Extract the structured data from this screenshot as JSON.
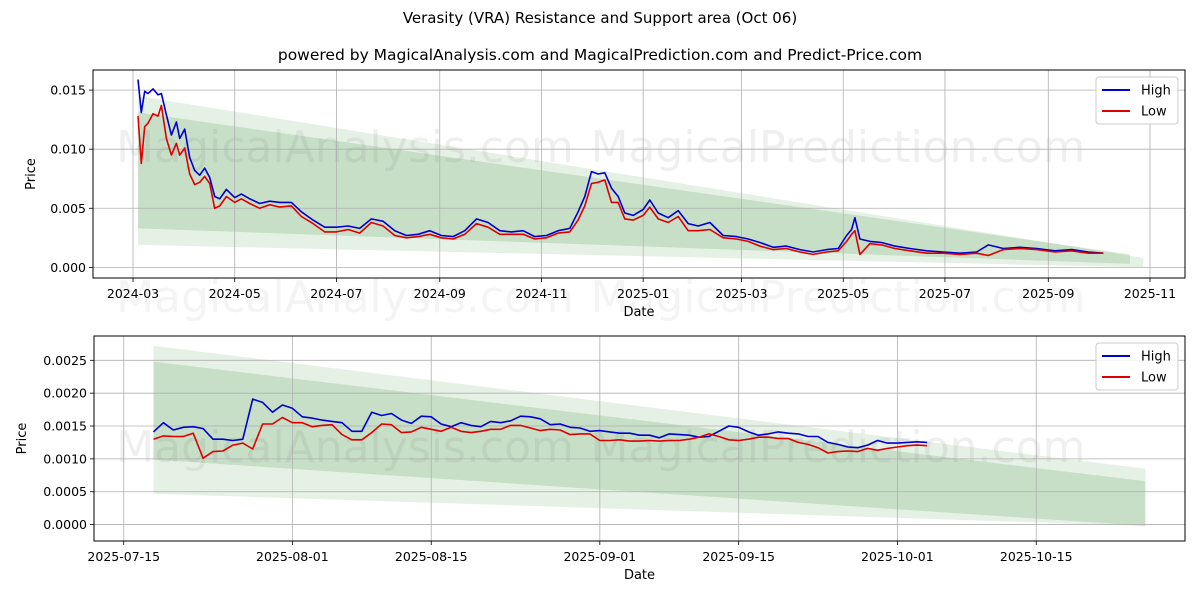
{
  "figure": {
    "title": "Verasity (VRA) Resistance and Support area (Oct 06)",
    "subtitle": "powered by MagicalAnalysis.com and MagicalPrediction.com and Predict-Price.com",
    "watermarks": [
      "MagicalAnalysis.com",
      "MagicalPrediction.com"
    ]
  },
  "colors": {
    "high": "#0000cc",
    "low": "#dd0000",
    "band_dark": "#a5d4a5",
    "band_light": "#cfe8cf",
    "grid": "#b0b0b0"
  },
  "chart_data": [
    {
      "type": "line",
      "title": "",
      "xlabel": "Date",
      "ylabel": "Price",
      "grid": true,
      "legend": {
        "position": "top-right",
        "entries": [
          "High",
          "Low"
        ]
      },
      "x_ticks": [
        "2024-03",
        "2024-05",
        "2024-07",
        "2024-09",
        "2024-11",
        "2025-01",
        "2025-03",
        "2025-05",
        "2025-07",
        "2025-09",
        "2025-11"
      ],
      "y_ticks": [
        "0.000",
        "0.005",
        "0.010",
        "0.015"
      ],
      "xlim": [
        "2024-02-06",
        "2025-11-22"
      ],
      "ylim": [
        -0.0009,
        0.0167
      ],
      "bands": [
        {
          "name": "outer-band",
          "x": [
            "2024-03-04",
            "2025-10-28"
          ],
          "upper": [
            0.0145,
            0.0008
          ],
          "lower": [
            0.0019,
            0.0
          ]
        },
        {
          "name": "inner-band",
          "x": [
            "2024-03-04",
            "2025-10-20"
          ],
          "upper": [
            0.0131,
            0.0011
          ],
          "lower": [
            0.0033,
            0.0003
          ]
        }
      ],
      "series": [
        {
          "name": "High",
          "x": [
            "2024-03-04",
            "2024-03-06",
            "2024-03-08",
            "2024-03-10",
            "2024-03-13",
            "2024-03-16",
            "2024-03-18",
            "2024-03-21",
            "2024-03-24",
            "2024-03-27",
            "2024-03-29",
            "2024-04-01",
            "2024-04-04",
            "2024-04-07",
            "2024-04-10",
            "2024-04-13",
            "2024-04-16",
            "2024-04-19",
            "2024-04-22",
            "2024-04-26",
            "2024-05-01",
            "2024-05-05",
            "2024-05-10",
            "2024-05-16",
            "2024-05-22",
            "2024-05-28",
            "2024-06-04",
            "2024-06-10",
            "2024-06-17",
            "2024-06-24",
            "2024-07-01",
            "2024-07-08",
            "2024-07-15",
            "2024-07-22",
            "2024-07-29",
            "2024-08-05",
            "2024-08-12",
            "2024-08-19",
            "2024-08-26",
            "2024-09-02",
            "2024-09-09",
            "2024-09-16",
            "2024-09-23",
            "2024-09-30",
            "2024-10-07",
            "2024-10-14",
            "2024-10-21",
            "2024-10-28",
            "2024-11-04",
            "2024-11-11",
            "2024-11-18",
            "2024-11-23",
            "2024-11-27",
            "2024-12-01",
            "2024-12-05",
            "2024-12-09",
            "2024-12-13",
            "2024-12-17",
            "2024-12-21",
            "2024-12-26",
            "2025-01-01",
            "2025-01-05",
            "2025-01-10",
            "2025-01-16",
            "2025-01-22",
            "2025-01-28",
            "2025-02-03",
            "2025-02-10",
            "2025-02-18",
            "2025-02-26",
            "2025-03-05",
            "2025-03-12",
            "2025-03-20",
            "2025-03-28",
            "2025-04-05",
            "2025-04-13",
            "2025-04-21",
            "2025-04-28",
            "2025-05-03",
            "2025-05-06",
            "2025-05-08",
            "2025-05-11",
            "2025-05-17",
            "2025-05-24",
            "2025-06-01",
            "2025-06-10",
            "2025-06-20",
            "2025-06-30",
            "2025-07-10",
            "2025-07-20",
            "2025-07-27",
            "2025-08-05",
            "2025-08-15",
            "2025-08-25",
            "2025-09-05",
            "2025-09-15",
            "2025-09-25",
            "2025-10-04"
          ],
          "values": [
            0.0159,
            0.0131,
            0.0149,
            0.0147,
            0.0151,
            0.0146,
            0.0147,
            0.0129,
            0.0112,
            0.0123,
            0.0109,
            0.0117,
            0.0093,
            0.0082,
            0.0078,
            0.0084,
            0.0076,
            0.006,
            0.0058,
            0.0066,
            0.0059,
            0.0062,
            0.0058,
            0.0054,
            0.0056,
            0.0055,
            0.0055,
            0.0047,
            0.004,
            0.0034,
            0.0034,
            0.0035,
            0.0033,
            0.0041,
            0.0039,
            0.0031,
            0.0027,
            0.0028,
            0.0031,
            0.0027,
            0.0026,
            0.0031,
            0.0041,
            0.0038,
            0.0031,
            0.003,
            0.0031,
            0.0026,
            0.0027,
            0.0031,
            0.0033,
            0.0047,
            0.006,
            0.0081,
            0.0079,
            0.008,
            0.0067,
            0.006,
            0.0046,
            0.0044,
            0.0049,
            0.0057,
            0.0046,
            0.0042,
            0.0048,
            0.0037,
            0.0035,
            0.0038,
            0.0027,
            0.0026,
            0.0024,
            0.0021,
            0.0017,
            0.0018,
            0.0015,
            0.0013,
            0.0015,
            0.0016,
            0.0027,
            0.0032,
            0.0042,
            0.0024,
            0.0022,
            0.0021,
            0.0018,
            0.0016,
            0.0014,
            0.0013,
            0.0012,
            0.0013,
            0.0019,
            0.0016,
            0.0017,
            0.0016,
            0.0014,
            0.0015,
            0.0013,
            0.0012
          ]
        },
        {
          "name": "Low",
          "x": [
            "2024-03-04",
            "2024-03-06",
            "2024-03-08",
            "2024-03-10",
            "2024-03-13",
            "2024-03-16",
            "2024-03-18",
            "2024-03-21",
            "2024-03-24",
            "2024-03-27",
            "2024-03-29",
            "2024-04-01",
            "2024-04-04",
            "2024-04-07",
            "2024-04-10",
            "2024-04-13",
            "2024-04-16",
            "2024-04-19",
            "2024-04-22",
            "2024-04-26",
            "2024-05-01",
            "2024-05-05",
            "2024-05-10",
            "2024-05-16",
            "2024-05-22",
            "2024-05-28",
            "2024-06-04",
            "2024-06-10",
            "2024-06-17",
            "2024-06-24",
            "2024-07-01",
            "2024-07-08",
            "2024-07-15",
            "2024-07-22",
            "2024-07-29",
            "2024-08-05",
            "2024-08-12",
            "2024-08-19",
            "2024-08-26",
            "2024-09-02",
            "2024-09-09",
            "2024-09-16",
            "2024-09-23",
            "2024-09-30",
            "2024-10-07",
            "2024-10-14",
            "2024-10-21",
            "2024-10-28",
            "2024-11-04",
            "2024-11-11",
            "2024-11-18",
            "2024-11-23",
            "2024-11-27",
            "2024-12-01",
            "2024-12-05",
            "2024-12-09",
            "2024-12-13",
            "2024-12-17",
            "2024-12-21",
            "2024-12-26",
            "2025-01-01",
            "2025-01-05",
            "2025-01-10",
            "2025-01-16",
            "2025-01-22",
            "2025-01-28",
            "2025-02-03",
            "2025-02-10",
            "2025-02-18",
            "2025-02-26",
            "2025-03-05",
            "2025-03-12",
            "2025-03-20",
            "2025-03-28",
            "2025-04-05",
            "2025-04-13",
            "2025-04-21",
            "2025-04-28",
            "2025-05-03",
            "2025-05-06",
            "2025-05-08",
            "2025-05-11",
            "2025-05-17",
            "2025-05-24",
            "2025-06-01",
            "2025-06-10",
            "2025-06-20",
            "2025-06-30",
            "2025-07-10",
            "2025-07-20",
            "2025-07-27",
            "2025-08-05",
            "2025-08-15",
            "2025-08-25",
            "2025-09-05",
            "2025-09-15",
            "2025-09-25",
            "2025-10-04"
          ],
          "values": [
            0.0128,
            0.0088,
            0.0119,
            0.0122,
            0.013,
            0.0128,
            0.0137,
            0.0109,
            0.0095,
            0.0105,
            0.0095,
            0.0101,
            0.0079,
            0.007,
            0.0072,
            0.0077,
            0.0071,
            0.005,
            0.0052,
            0.006,
            0.0055,
            0.0058,
            0.0054,
            0.005,
            0.0053,
            0.0051,
            0.0052,
            0.0043,
            0.0037,
            0.003,
            0.003,
            0.0032,
            0.0029,
            0.0038,
            0.0035,
            0.0027,
            0.0025,
            0.0026,
            0.0028,
            0.0025,
            0.0024,
            0.0028,
            0.0037,
            0.0034,
            0.0028,
            0.0028,
            0.0028,
            0.0024,
            0.0025,
            0.0029,
            0.003,
            0.004,
            0.0052,
            0.0071,
            0.0072,
            0.0074,
            0.0055,
            0.0055,
            0.0041,
            0.004,
            0.0044,
            0.0051,
            0.0041,
            0.0038,
            0.0043,
            0.0031,
            0.0031,
            0.0032,
            0.0025,
            0.0024,
            0.0022,
            0.0018,
            0.0015,
            0.0016,
            0.0013,
            0.0011,
            0.0013,
            0.0014,
            0.0022,
            0.0028,
            0.0031,
            0.0011,
            0.002,
            0.0019,
            0.0016,
            0.0014,
            0.0012,
            0.0012,
            0.0011,
            0.0012,
            0.001,
            0.0015,
            0.0016,
            0.0015,
            0.0013,
            0.0014,
            0.0012,
            0.0012
          ]
        }
      ]
    },
    {
      "type": "line",
      "title": "",
      "xlabel": "Date",
      "ylabel": "Price",
      "grid": true,
      "legend": {
        "position": "top-right",
        "entries": [
          "High",
          "Low"
        ]
      },
      "x_ticks": [
        "2025-07-15",
        "2025-08-01",
        "2025-08-15",
        "2025-09-01",
        "2025-09-15",
        "2025-10-01",
        "2025-10-15"
      ],
      "y_ticks": [
        "0.0000",
        "0.0005",
        "0.0010",
        "0.0015",
        "0.0020",
        "0.0025"
      ],
      "xlim": [
        "2025-07-12",
        "2025-10-30"
      ],
      "ylim": [
        -0.00025,
        0.00287
      ],
      "bands": [
        {
          "name": "outer-band",
          "x": [
            "2025-07-18",
            "2025-10-26"
          ],
          "upper": [
            0.00272,
            0.00085
          ],
          "lower": [
            0.00047,
            -2e-05
          ]
        },
        {
          "name": "inner-band",
          "x": [
            "2025-07-18",
            "2025-10-26"
          ],
          "upper": [
            0.00248,
            0.00066
          ],
          "lower": [
            0.00099,
            -2e-05
          ]
        }
      ],
      "series": [
        {
          "name": "High",
          "x": [
            "2025-07-18",
            "2025-07-19",
            "2025-07-20",
            "2025-07-21",
            "2025-07-22",
            "2025-07-23",
            "2025-07-24",
            "2025-07-25",
            "2025-07-26",
            "2025-07-27",
            "2025-07-28",
            "2025-07-29",
            "2025-07-30",
            "2025-07-31",
            "2025-08-01",
            "2025-08-02",
            "2025-08-03",
            "2025-08-04",
            "2025-08-05",
            "2025-08-06",
            "2025-08-07",
            "2025-08-08",
            "2025-08-09",
            "2025-08-10",
            "2025-08-11",
            "2025-08-12",
            "2025-08-13",
            "2025-08-14",
            "2025-08-15",
            "2025-08-16",
            "2025-08-17",
            "2025-08-18",
            "2025-08-19",
            "2025-08-20",
            "2025-08-21",
            "2025-08-22",
            "2025-08-23",
            "2025-08-24",
            "2025-08-25",
            "2025-08-26",
            "2025-08-27",
            "2025-08-28",
            "2025-08-29",
            "2025-08-30",
            "2025-08-31",
            "2025-09-01",
            "2025-09-02",
            "2025-09-03",
            "2025-09-04",
            "2025-09-05",
            "2025-09-06",
            "2025-09-07",
            "2025-09-08",
            "2025-09-09",
            "2025-09-10",
            "2025-09-11",
            "2025-09-12",
            "2025-09-13",
            "2025-09-14",
            "2025-09-15",
            "2025-09-16",
            "2025-09-17",
            "2025-09-18",
            "2025-09-19",
            "2025-09-20",
            "2025-09-21",
            "2025-09-22",
            "2025-09-23",
            "2025-09-24",
            "2025-09-25",
            "2025-09-26",
            "2025-09-27",
            "2025-09-28",
            "2025-09-29",
            "2025-09-30",
            "2025-10-01",
            "2025-10-02",
            "2025-10-03",
            "2025-10-04"
          ],
          "values": [
            0.00141,
            0.00155,
            0.00144,
            0.00148,
            0.00149,
            0.00146,
            0.0013,
            0.0013,
            0.00128,
            0.0013,
            0.00191,
            0.00186,
            0.00171,
            0.00182,
            0.00177,
            0.00164,
            0.00162,
            0.00159,
            0.00157,
            0.00155,
            0.00142,
            0.00142,
            0.00171,
            0.00166,
            0.00169,
            0.00159,
            0.00154,
            0.00165,
            0.00164,
            0.00153,
            0.00149,
            0.00155,
            0.00151,
            0.00149,
            0.00157,
            0.00155,
            0.00158,
            0.00165,
            0.00164,
            0.00161,
            0.00152,
            0.00153,
            0.00148,
            0.00147,
            0.00142,
            0.00143,
            0.00141,
            0.00139,
            0.00139,
            0.00136,
            0.00136,
            0.00132,
            0.00138,
            0.00137,
            0.00136,
            0.00133,
            0.00134,
            0.00142,
            0.0015,
            0.00148,
            0.00141,
            0.00136,
            0.00138,
            0.00141,
            0.00139,
            0.00138,
            0.00134,
            0.00134,
            0.00125,
            0.00122,
            0.00118,
            0.00117,
            0.00121,
            0.00128,
            0.00124,
            0.00124,
            0.00125,
            0.00126,
            0.00125
          ]
        },
        {
          "name": "Low",
          "x": [
            "2025-07-18",
            "2025-07-19",
            "2025-07-20",
            "2025-07-21",
            "2025-07-22",
            "2025-07-23",
            "2025-07-24",
            "2025-07-25",
            "2025-07-26",
            "2025-07-27",
            "2025-07-28",
            "2025-07-29",
            "2025-07-30",
            "2025-07-31",
            "2025-08-01",
            "2025-08-02",
            "2025-08-03",
            "2025-08-04",
            "2025-08-05",
            "2025-08-06",
            "2025-08-07",
            "2025-08-08",
            "2025-08-09",
            "2025-08-10",
            "2025-08-11",
            "2025-08-12",
            "2025-08-13",
            "2025-08-14",
            "2025-08-15",
            "2025-08-16",
            "2025-08-17",
            "2025-08-18",
            "2025-08-19",
            "2025-08-20",
            "2025-08-21",
            "2025-08-22",
            "2025-08-23",
            "2025-08-24",
            "2025-08-25",
            "2025-08-26",
            "2025-08-27",
            "2025-08-28",
            "2025-08-29",
            "2025-08-30",
            "2025-08-31",
            "2025-09-01",
            "2025-09-02",
            "2025-09-03",
            "2025-09-04",
            "2025-09-05",
            "2025-09-06",
            "2025-09-07",
            "2025-09-08",
            "2025-09-09",
            "2025-09-10",
            "2025-09-11",
            "2025-09-12",
            "2025-09-13",
            "2025-09-14",
            "2025-09-15",
            "2025-09-16",
            "2025-09-17",
            "2025-09-18",
            "2025-09-19",
            "2025-09-20",
            "2025-09-21",
            "2025-09-22",
            "2025-09-23",
            "2025-09-24",
            "2025-09-25",
            "2025-09-26",
            "2025-09-27",
            "2025-09-28",
            "2025-09-29",
            "2025-09-30",
            "2025-10-01",
            "2025-10-02",
            "2025-10-03",
            "2025-10-04"
          ],
          "values": [
            0.0013,
            0.00135,
            0.00134,
            0.00134,
            0.00139,
            0.00101,
            0.00111,
            0.00112,
            0.00121,
            0.00124,
            0.00115,
            0.00153,
            0.00153,
            0.00163,
            0.00155,
            0.00155,
            0.00149,
            0.00151,
            0.00152,
            0.00137,
            0.00129,
            0.00129,
            0.0014,
            0.00153,
            0.00152,
            0.0014,
            0.00141,
            0.00148,
            0.00145,
            0.00142,
            0.00148,
            0.00142,
            0.0014,
            0.00142,
            0.00145,
            0.00145,
            0.00151,
            0.00151,
            0.00147,
            0.00143,
            0.00145,
            0.00144,
            0.00137,
            0.00138,
            0.00138,
            0.00128,
            0.00128,
            0.00129,
            0.00127,
            0.00127,
            0.00128,
            0.00127,
            0.00128,
            0.00128,
            0.0013,
            0.00133,
            0.00138,
            0.00134,
            0.00129,
            0.00128,
            0.0013,
            0.00133,
            0.00133,
            0.00131,
            0.00131,
            0.00125,
            0.00122,
            0.00117,
            0.00109,
            0.00111,
            0.00112,
            0.00111,
            0.00116,
            0.00113,
            0.00116,
            0.00118,
            0.0012,
            0.00121,
            0.0012
          ]
        }
      ]
    }
  ]
}
